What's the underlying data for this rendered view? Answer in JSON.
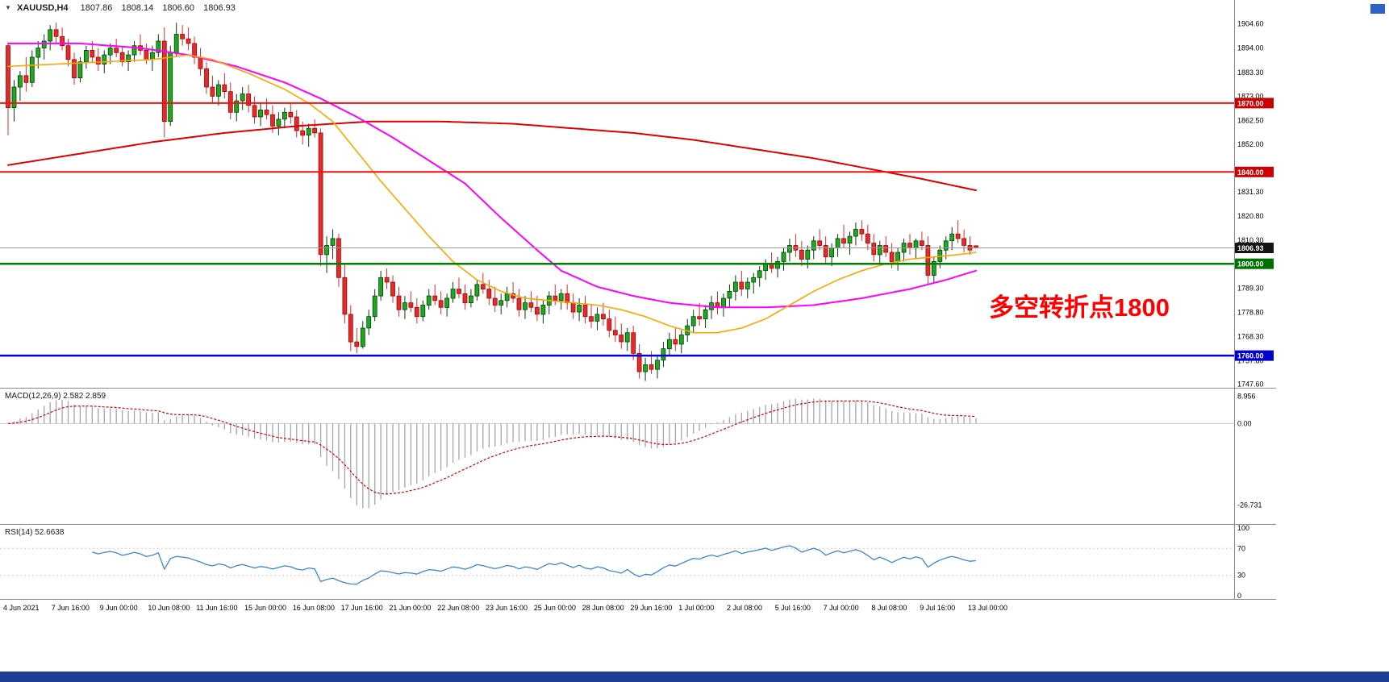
{
  "window": {
    "taskbar_color": "#1d3e95",
    "corner_button_color": "#2e62c8",
    "background": "#ffffff"
  },
  "header": {
    "dropdown_icon": "▼",
    "symbol": "XAUUSD,H4",
    "open": "1807.86",
    "high": "1808.14",
    "low": "1806.60",
    "close": "1806.93"
  },
  "chart_data": {
    "type": "candlestick",
    "symbol": "XAUUSD",
    "timeframe": "H4",
    "annotation": {
      "text": "多空转折点1800",
      "color": "#ff0000"
    },
    "colors": {
      "up_fill": "#1fa81f",
      "up_stroke": "#063f06",
      "down_fill": "#e22b2b",
      "down_stroke": "#9d0707",
      "separator": "#8c8c8c",
      "macd_hist": "#a6a6a6",
      "macd_signal": "#dd0000",
      "rsi_line": "#3d85d8",
      "panel_level": "#cccccc",
      "current_line": "#999999"
    },
    "price_axis": {
      "max": 1907.2,
      "min": 1746.0,
      "ticks": [
        "1904.60",
        "1894.00",
        "1883.30",
        "1873.00",
        "1862.50",
        "1852.00",
        "1831.30",
        "1820.80",
        "1810.30",
        "1789.30",
        "1778.80",
        "1768.30",
        "1757.80",
        "1747.60"
      ]
    },
    "levels": [
      {
        "price": 1870.0,
        "label": "1870.00",
        "color": "#ee1111",
        "width": 2,
        "tag_bg": "#cc0000"
      },
      {
        "price": 1840.0,
        "label": "1840.00",
        "color": "#ee1111",
        "width": 2,
        "tag_bg": "#cc0000"
      },
      {
        "price": 1806.93,
        "label": "1806.93",
        "color": "#999999",
        "width": 1,
        "tag_bg": "#151515"
      },
      {
        "price": 1800.0,
        "label": "1800.00",
        "color": "#008000",
        "width": 2.5,
        "tag_bg": "#007000"
      },
      {
        "price": 1760.0,
        "label": "1760.00",
        "color": "#0000dd",
        "width": 2.5,
        "tag_bg": "#0000cc"
      }
    ],
    "moving_averages": [
      {
        "name": "ma-slow-red",
        "color": "#dd0000",
        "width": 2,
        "points": [
          [
            0,
            1843
          ],
          [
            12,
            1848
          ],
          [
            24,
            1853
          ],
          [
            36,
            1857
          ],
          [
            48,
            1860
          ],
          [
            60,
            1862
          ],
          [
            72,
            1862
          ],
          [
            84,
            1861
          ],
          [
            94,
            1859
          ],
          [
            104,
            1857
          ],
          [
            114,
            1854
          ],
          [
            124,
            1850
          ],
          [
            134,
            1846
          ],
          [
            144,
            1841
          ],
          [
            152,
            1837
          ],
          [
            161,
            1832
          ]
        ]
      },
      {
        "name": "ma-mid-magenta",
        "color": "#ff00ff",
        "width": 2,
        "points": [
          [
            0,
            1896
          ],
          [
            12,
            1896
          ],
          [
            22,
            1894
          ],
          [
            30,
            1891
          ],
          [
            38,
            1886
          ],
          [
            46,
            1879
          ],
          [
            52,
            1872
          ],
          [
            58,
            1864
          ],
          [
            64,
            1855
          ],
          [
            70,
            1845
          ],
          [
            76,
            1835
          ],
          [
            82,
            1820
          ],
          [
            88,
            1806
          ],
          [
            92,
            1797
          ],
          [
            98,
            1790
          ],
          [
            104,
            1786
          ],
          [
            110,
            1783
          ],
          [
            118,
            1781
          ],
          [
            126,
            1781
          ],
          [
            134,
            1782
          ],
          [
            142,
            1785
          ],
          [
            150,
            1789
          ],
          [
            156,
            1793
          ],
          [
            161,
            1797
          ]
        ]
      },
      {
        "name": "ma-fast-orange",
        "color": "#ffa500",
        "width": 1.6,
        "points": [
          [
            0,
            1886
          ],
          [
            8,
            1887
          ],
          [
            16,
            1888
          ],
          [
            24,
            1889
          ],
          [
            30,
            1891
          ],
          [
            34,
            1889
          ],
          [
            40,
            1883
          ],
          [
            46,
            1876
          ],
          [
            50,
            1870
          ],
          [
            54,
            1862
          ],
          [
            58,
            1849
          ],
          [
            62,
            1836
          ],
          [
            66,
            1824
          ],
          [
            70,
            1812
          ],
          [
            74,
            1801
          ],
          [
            78,
            1793
          ],
          [
            82,
            1788
          ],
          [
            86,
            1785
          ],
          [
            90,
            1784
          ],
          [
            94,
            1783
          ],
          [
            98,
            1782
          ],
          [
            102,
            1780
          ],
          [
            106,
            1777
          ],
          [
            110,
            1773
          ],
          [
            114,
            1770
          ],
          [
            118,
            1770
          ],
          [
            122,
            1772
          ],
          [
            126,
            1776
          ],
          [
            130,
            1782
          ],
          [
            134,
            1788
          ],
          [
            138,
            1793
          ],
          [
            142,
            1797
          ],
          [
            146,
            1800
          ],
          [
            150,
            1802
          ],
          [
            154,
            1803
          ],
          [
            158,
            1804
          ],
          [
            161,
            1805
          ]
        ]
      }
    ],
    "candles": [
      [
        1895,
        1896,
        1856,
        1868
      ],
      [
        1868,
        1880,
        1862,
        1877
      ],
      [
        1877,
        1884,
        1871,
        1882
      ],
      [
        1882,
        1890,
        1875,
        1879
      ],
      [
        1879,
        1893,
        1877,
        1890
      ],
      [
        1890,
        1897,
        1885,
        1894
      ],
      [
        1894,
        1900,
        1889,
        1897
      ],
      [
        1897,
        1904,
        1893,
        1902
      ],
      [
        1902,
        1905,
        1896,
        1899
      ],
      [
        1899,
        1903,
        1893,
        1895
      ],
      [
        1895,
        1898,
        1886,
        1889
      ],
      [
        1889,
        1892,
        1878,
        1881
      ],
      [
        1881,
        1890,
        1879,
        1888
      ],
      [
        1888,
        1895,
        1885,
        1893
      ],
      [
        1893,
        1897,
        1888,
        1890
      ],
      [
        1890,
        1894,
        1884,
        1887
      ],
      [
        1887,
        1893,
        1883,
        1891
      ],
      [
        1891,
        1896,
        1887,
        1894
      ],
      [
        1894,
        1898,
        1890,
        1892
      ],
      [
        1892,
        1895,
        1886,
        1888
      ],
      [
        1888,
        1893,
        1884,
        1891
      ],
      [
        1891,
        1897,
        1888,
        1895
      ],
      [
        1895,
        1900,
        1891,
        1893
      ],
      [
        1893,
        1896,
        1887,
        1889
      ],
      [
        1889,
        1895,
        1884,
        1892
      ],
      [
        1892,
        1900,
        1890,
        1897
      ],
      [
        1897,
        1903,
        1855,
        1862
      ],
      [
        1862,
        1895,
        1860,
        1892
      ],
      [
        1892,
        1905,
        1890,
        1900
      ],
      [
        1900,
        1904,
        1895,
        1898
      ],
      [
        1898,
        1903,
        1893,
        1896
      ],
      [
        1896,
        1899,
        1887,
        1890
      ],
      [
        1890,
        1894,
        1882,
        1885
      ],
      [
        1885,
        1888,
        1874,
        1877
      ],
      [
        1877,
        1882,
        1870,
        1873
      ],
      [
        1873,
        1880,
        1869,
        1878
      ],
      [
        1878,
        1883,
        1872,
        1875
      ],
      [
        1875,
        1879,
        1863,
        1866
      ],
      [
        1866,
        1874,
        1862,
        1871
      ],
      [
        1871,
        1877,
        1867,
        1874
      ],
      [
        1874,
        1878,
        1866,
        1869
      ],
      [
        1869,
        1873,
        1861,
        1864
      ],
      [
        1864,
        1870,
        1860,
        1867
      ],
      [
        1867,
        1872,
        1863,
        1865
      ],
      [
        1865,
        1869,
        1857,
        1860
      ],
      [
        1860,
        1866,
        1856,
        1863
      ],
      [
        1863,
        1868,
        1859,
        1866
      ],
      [
        1866,
        1870,
        1861,
        1864
      ],
      [
        1864,
        1867,
        1855,
        1858
      ],
      [
        1858,
        1862,
        1852,
        1856
      ],
      [
        1856,
        1861,
        1851,
        1859
      ],
      [
        1859,
        1863,
        1855,
        1857
      ],
      [
        1857,
        1859,
        1799,
        1804
      ],
      [
        1804,
        1812,
        1796,
        1808
      ],
      [
        1808,
        1815,
        1802,
        1811
      ],
      [
        1811,
        1813,
        1790,
        1794
      ],
      [
        1794,
        1800,
        1774,
        1778
      ],
      [
        1778,
        1782,
        1762,
        1766
      ],
      [
        1766,
        1772,
        1761,
        1764
      ],
      [
        1764,
        1775,
        1763,
        1772
      ],
      [
        1772,
        1780,
        1769,
        1777
      ],
      [
        1777,
        1789,
        1775,
        1786
      ],
      [
        1786,
        1797,
        1784,
        1794
      ],
      [
        1794,
        1798,
        1789,
        1792
      ],
      [
        1792,
        1795,
        1783,
        1786
      ],
      [
        1786,
        1790,
        1777,
        1780
      ],
      [
        1780,
        1786,
        1776,
        1783
      ],
      [
        1783,
        1788,
        1779,
        1781
      ],
      [
        1781,
        1785,
        1774,
        1777
      ],
      [
        1777,
        1784,
        1775,
        1782
      ],
      [
        1782,
        1789,
        1780,
        1786
      ],
      [
        1786,
        1791,
        1782,
        1784
      ],
      [
        1784,
        1788,
        1778,
        1781
      ],
      [
        1781,
        1787,
        1777,
        1785
      ],
      [
        1785,
        1792,
        1783,
        1789
      ],
      [
        1789,
        1794,
        1785,
        1787
      ],
      [
        1787,
        1791,
        1780,
        1783
      ],
      [
        1783,
        1789,
        1781,
        1786
      ],
      [
        1786,
        1793,
        1784,
        1791
      ],
      [
        1791,
        1796,
        1787,
        1789
      ],
      [
        1789,
        1793,
        1782,
        1785
      ],
      [
        1785,
        1790,
        1779,
        1782
      ],
      [
        1782,
        1787,
        1778,
        1784
      ],
      [
        1784,
        1790,
        1781,
        1787
      ],
      [
        1787,
        1792,
        1783,
        1785
      ],
      [
        1785,
        1789,
        1777,
        1780
      ],
      [
        1780,
        1786,
        1776,
        1783
      ],
      [
        1783,
        1788,
        1779,
        1781
      ],
      [
        1781,
        1786,
        1775,
        1778
      ],
      [
        1778,
        1784,
        1774,
        1782
      ],
      [
        1782,
        1788,
        1778,
        1786
      ],
      [
        1786,
        1791,
        1782,
        1784
      ],
      [
        1784,
        1789,
        1780,
        1787
      ],
      [
        1787,
        1791,
        1780,
        1783
      ],
      [
        1783,
        1787,
        1776,
        1779
      ],
      [
        1779,
        1785,
        1775,
        1782
      ],
      [
        1782,
        1786,
        1774,
        1777
      ],
      [
        1777,
        1782,
        1772,
        1775
      ],
      [
        1775,
        1781,
        1771,
        1778
      ],
      [
        1778,
        1783,
        1773,
        1776
      ],
      [
        1776,
        1780,
        1768,
        1771
      ],
      [
        1771,
        1777,
        1766,
        1769
      ],
      [
        1769,
        1774,
        1763,
        1766
      ],
      [
        1766,
        1772,
        1762,
        1770
      ],
      [
        1770,
        1773,
        1758,
        1761
      ],
      [
        1761,
        1765,
        1750,
        1753
      ],
      [
        1753,
        1759,
        1749,
        1756
      ],
      [
        1756,
        1762,
        1752,
        1754
      ],
      [
        1754,
        1760,
        1750,
        1758
      ],
      [
        1758,
        1766,
        1755,
        1763
      ],
      [
        1763,
        1770,
        1760,
        1767
      ],
      [
        1767,
        1772,
        1762,
        1765
      ],
      [
        1765,
        1771,
        1761,
        1769
      ],
      [
        1769,
        1776,
        1766,
        1773
      ],
      [
        1773,
        1780,
        1770,
        1777
      ],
      [
        1777,
        1783,
        1773,
        1776
      ],
      [
        1776,
        1782,
        1772,
        1780
      ],
      [
        1780,
        1786,
        1776,
        1783
      ],
      [
        1783,
        1788,
        1778,
        1781
      ],
      [
        1781,
        1787,
        1777,
        1785
      ],
      [
        1785,
        1791,
        1781,
        1788
      ],
      [
        1788,
        1795,
        1784,
        1792
      ],
      [
        1792,
        1797,
        1786,
        1789
      ],
      [
        1789,
        1794,
        1785,
        1792
      ],
      [
        1792,
        1796,
        1787,
        1794
      ],
      [
        1794,
        1799,
        1790,
        1797
      ],
      [
        1797,
        1802,
        1793,
        1800
      ],
      [
        1800,
        1805,
        1796,
        1798
      ],
      [
        1798,
        1803,
        1794,
        1801
      ],
      [
        1801,
        1807,
        1797,
        1805
      ],
      [
        1805,
        1811,
        1801,
        1808
      ],
      [
        1808,
        1813,
        1803,
        1806
      ],
      [
        1806,
        1810,
        1799,
        1802
      ],
      [
        1802,
        1808,
        1798,
        1806
      ],
      [
        1806,
        1812,
        1802,
        1810
      ],
      [
        1810,
        1815,
        1806,
        1808
      ],
      [
        1808,
        1812,
        1800,
        1803
      ],
      [
        1803,
        1809,
        1799,
        1807
      ],
      [
        1807,
        1813,
        1803,
        1811
      ],
      [
        1811,
        1817,
        1807,
        1809
      ],
      [
        1809,
        1814,
        1804,
        1812
      ],
      [
        1812,
        1818,
        1808,
        1815
      ],
      [
        1815,
        1819,
        1810,
        1813
      ],
      [
        1813,
        1817,
        1806,
        1809
      ],
      [
        1809,
        1813,
        1801,
        1804
      ],
      [
        1804,
        1810,
        1800,
        1808
      ],
      [
        1808,
        1812,
        1803,
        1805
      ],
      [
        1805,
        1809,
        1798,
        1801
      ],
      [
        1801,
        1807,
        1797,
        1805
      ],
      [
        1805,
        1811,
        1801,
        1809
      ],
      [
        1809,
        1813,
        1804,
        1807
      ],
      [
        1807,
        1811,
        1802,
        1810
      ],
      [
        1810,
        1814,
        1806,
        1808
      ],
      [
        1808,
        1812,
        1791,
        1795
      ],
      [
        1795,
        1803,
        1792,
        1801
      ],
      [
        1801,
        1808,
        1798,
        1806
      ],
      [
        1806,
        1812,
        1802,
        1810
      ],
      [
        1810,
        1816,
        1806,
        1813
      ],
      [
        1813,
        1819,
        1809,
        1811
      ],
      [
        1811,
        1815,
        1805,
        1808
      ],
      [
        1808,
        1812,
        1804,
        1806
      ],
      [
        1807.86,
        1808.14,
        1806.6,
        1806.93
      ]
    ],
    "time_axis": {
      "labels": [
        "4 Jun 2021",
        "7 Jun 16:00",
        "9 Jun 00:00",
        "10 Jun 08:00",
        "11 Jun 16:00",
        "15 Jun 00:00",
        "16 Jun 08:00",
        "17 Jun 16:00",
        "21 Jun 00:00",
        "22 Jun 08:00",
        "23 Jun 16:00",
        "25 Jun 00:00",
        "28 Jun 08:00",
        "29 Jun 16:00",
        "1 Jul 00:00",
        "2 Jul 08:00",
        "5 Jul 16:00",
        "7 Jul 00:00",
        "8 Jul 08:00",
        "9 Jul 16:00",
        "13 Jul 00:00"
      ]
    },
    "macd": {
      "label": "MACD(12,26,9)",
      "value_text": "2.582 2.859",
      "params": [
        12,
        26,
        9
      ],
      "axis_labels": [
        "8.956",
        "0.00",
        "-26.731"
      ],
      "axis_values": [
        8.956,
        0,
        -26.731
      ],
      "scale_max": 11.5,
      "scale_min": -33
    },
    "rsi": {
      "label": "RSI(14)",
      "value_text": "52.6638",
      "period": 14,
      "axis_labels": [
        "100",
        "70",
        "30",
        "0"
      ],
      "axis_values": [
        100,
        70,
        30,
        0
      ],
      "levels": [
        70,
        30
      ],
      "scale_max": 105,
      "scale_min": -5
    }
  }
}
